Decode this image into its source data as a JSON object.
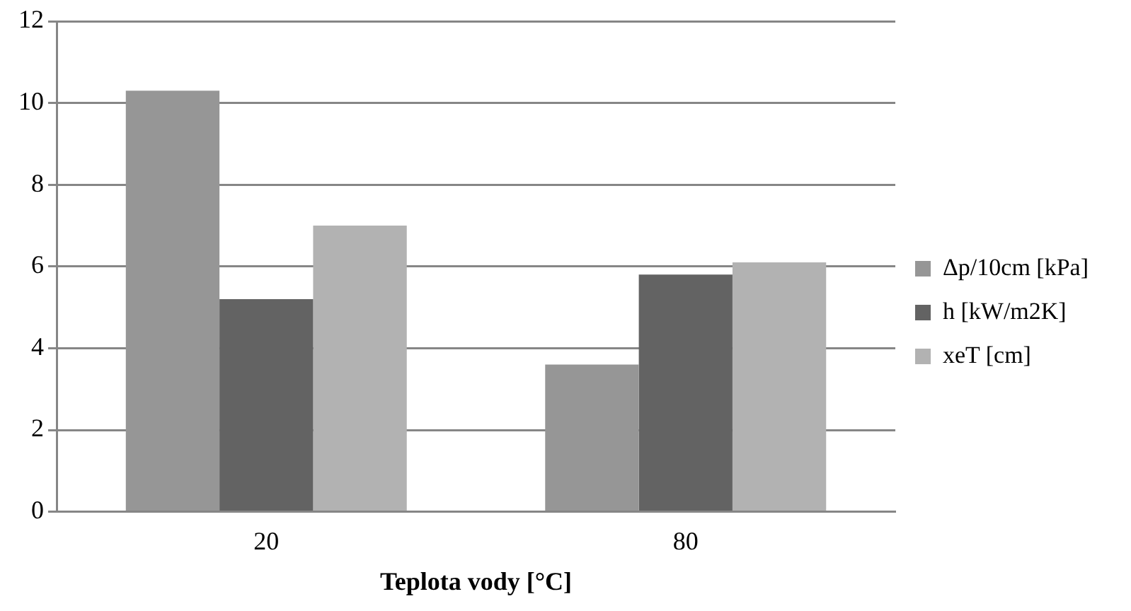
{
  "chart_data": {
    "type": "bar",
    "xlabel": "Teplota vody [°C]",
    "categories": [
      "20",
      "80"
    ],
    "series": [
      {
        "name": "Δp/10cm [kPa]",
        "color": "#969696",
        "values": [
          10.3,
          3.6
        ]
      },
      {
        "name": "h [kW/m2K]",
        "color": "#636363",
        "values": [
          5.2,
          5.8
        ]
      },
      {
        "name": "xeT [cm]",
        "color": "#b2b2b2",
        "values": [
          7.0,
          6.1
        ]
      }
    ],
    "ylim": [
      0,
      12
    ],
    "yticks": [
      0,
      2,
      4,
      6,
      8,
      10,
      12
    ],
    "grid": "y",
    "legend": "right"
  }
}
